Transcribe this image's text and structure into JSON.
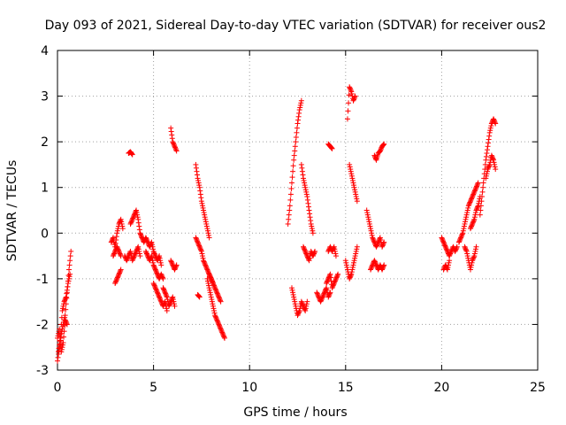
{
  "chart_data": {
    "type": "scatter",
    "title": "Day 093 of 2021, Sidereal Day-to-day VTEC variation (SDTVAR) for receiver ous2",
    "xlabel": "GPS time / hours",
    "ylabel": "SDTVAR / TECUs",
    "xlim": [
      0,
      25
    ],
    "ylim": [
      -3,
      4
    ],
    "xticks": [
      0,
      5,
      10,
      15,
      20,
      25
    ],
    "yticks": [
      -3,
      -2,
      -1,
      0,
      1,
      2,
      3,
      4
    ],
    "xtick_labels": [
      "0",
      "5",
      "10",
      "15",
      "20",
      "25"
    ],
    "ytick_labels": [
      "-3",
      "-2",
      "-1",
      "0",
      "1",
      "2",
      "3",
      "4"
    ],
    "grid": true,
    "marker": "+",
    "series": [
      {
        "name": "SDTVAR",
        "color": "#ff0000",
        "segments": [
          {
            "x": [
              0.0,
              0.1,
              0.2,
              0.3,
              0.4,
              0.5,
              0.6,
              0.7
            ],
            "y": [
              -2.8,
              -2.5,
              -2.2,
              -2.0,
              -1.8,
              -1.3,
              -0.8,
              -0.4
            ]
          },
          {
            "x": [
              0.0,
              0.1,
              0.2,
              0.3,
              0.4,
              0.5
            ],
            "y": [
              -2.3,
              -2.1,
              -2.6,
              -2.4,
              -1.9,
              -2.0
            ]
          },
          {
            "x": [
              0.05,
              0.15,
              0.25,
              0.35,
              0.45,
              0.55,
              0.65
            ],
            "y": [
              -2.6,
              -2.3,
              -1.7,
              -1.5,
              -1.4,
              -1.1,
              -0.9
            ]
          },
          {
            "x": [
              2.8,
              2.9,
              3.0,
              3.1,
              3.2,
              3.3,
              3.4
            ],
            "y": [
              -0.2,
              -0.1,
              -0.3,
              0.0,
              0.2,
              0.3,
              0.1
            ]
          },
          {
            "x": [
              2.9,
              3.0,
              3.1,
              3.2,
              3.3
            ],
            "y": [
              -0.5,
              -0.4,
              -0.3,
              -0.4,
              -0.5
            ]
          },
          {
            "x": [
              3.0,
              3.1,
              3.2,
              3.3
            ],
            "y": [
              -1.1,
              -1.0,
              -0.9,
              -0.8
            ]
          },
          {
            "x": [
              3.5,
              3.6,
              3.7,
              3.8,
              3.9,
              4.0,
              4.1,
              4.2,
              4.3
            ],
            "y": [
              -0.5,
              -0.6,
              -0.5,
              -0.4,
              -0.6,
              -0.5,
              -0.4,
              -0.3,
              -0.5
            ]
          },
          {
            "x": [
              3.7,
              3.8,
              3.9
            ],
            "y": [
              1.75,
              1.78,
              1.72
            ]
          },
          {
            "x": [
              3.8,
              3.9,
              4.0,
              4.1,
              4.2,
              4.3,
              4.4
            ],
            "y": [
              0.2,
              0.3,
              0.4,
              0.5,
              0.3,
              0.0,
              -0.1
            ]
          },
          {
            "x": [
              4.4,
              4.5,
              4.6,
              4.7,
              4.8,
              4.9,
              5.0,
              5.1,
              5.2,
              5.3,
              5.4
            ],
            "y": [
              -0.1,
              -0.2,
              -0.1,
              -0.2,
              -0.3,
              -0.2,
              -0.4,
              -0.5,
              -0.6,
              -0.5,
              -0.7
            ]
          },
          {
            "x": [
              4.6,
              4.7,
              4.8,
              4.9,
              5.0,
              5.1,
              5.2,
              5.3,
              5.4,
              5.5
            ],
            "y": [
              -0.4,
              -0.5,
              -0.6,
              -0.5,
              -0.7,
              -0.8,
              -0.9,
              -1.0,
              -0.9,
              -1.0
            ]
          },
          {
            "x": [
              5.0,
              5.1,
              5.2,
              5.3,
              5.4,
              5.5,
              5.6,
              5.7
            ],
            "y": [
              -1.1,
              -1.2,
              -1.3,
              -1.4,
              -1.5,
              -1.6,
              -1.5,
              -1.7
            ]
          },
          {
            "x": [
              5.5,
              5.6,
              5.7,
              5.8,
              5.9,
              6.0,
              6.1
            ],
            "y": [
              -1.2,
              -1.3,
              -1.4,
              -1.6,
              -1.5,
              -1.4,
              -1.6
            ]
          },
          {
            "x": [
              5.9,
              6.0,
              6.1,
              6.2
            ],
            "y": [
              -0.6,
              -0.7,
              -0.8,
              -0.7
            ]
          },
          {
            "x": [
              5.9,
              6.0,
              6.1,
              6.2
            ],
            "y": [
              2.3,
              2.0,
              1.9,
              1.8
            ]
          },
          {
            "x": [
              7.2,
              7.3,
              7.4,
              7.5,
              7.6,
              7.7,
              7.8,
              7.9
            ],
            "y": [
              1.5,
              1.2,
              1.0,
              0.7,
              0.5,
              0.3,
              0.1,
              -0.1
            ]
          },
          {
            "x": [
              7.2,
              7.3,
              7.4,
              7.5,
              7.6,
              7.7,
              7.8,
              7.9,
              8.0,
              8.1
            ],
            "y": [
              -0.1,
              -0.2,
              -0.3,
              -0.4,
              -0.6,
              -0.7,
              -0.8,
              -0.9,
              -1.0,
              -1.1
            ]
          },
          {
            "x": [
              7.8,
              7.9,
              8.0,
              8.1,
              8.2,
              8.3,
              8.4,
              8.5,
              8.6,
              8.7
            ],
            "y": [
              -1.0,
              -1.2,
              -1.4,
              -1.6,
              -1.8,
              -1.9,
              -2.0,
              -2.1,
              -2.2,
              -2.3
            ]
          },
          {
            "x": [
              7.9,
              8.0,
              8.1,
              8.2,
              8.3,
              8.4,
              8.5
            ],
            "y": [
              -0.9,
              -1.0,
              -1.1,
              -1.2,
              -1.3,
              -1.4,
              -1.5
            ]
          },
          {
            "x": [
              7.3,
              7.4
            ],
            "y": [
              -1.35,
              -1.4
            ]
          },
          {
            "x": [
              12.0,
              12.1,
              12.2,
              12.3,
              12.4,
              12.5,
              12.6,
              12.7
            ],
            "y": [
              0.2,
              0.6,
              1.1,
              1.6,
              2.0,
              2.4,
              2.7,
              2.9
            ]
          },
          {
            "x": [
              12.2,
              12.3,
              12.4,
              12.5,
              12.6,
              12.7,
              12.8,
              12.9,
              13.0
            ],
            "y": [
              -1.2,
              -1.4,
              -1.6,
              -1.8,
              -1.7,
              -1.5,
              -1.6,
              -1.7,
              -1.5
            ]
          },
          {
            "x": [
              12.7,
              12.8,
              12.9,
              13.0,
              13.1,
              13.2,
              13.3
            ],
            "y": [
              1.5,
              1.2,
              1.0,
              0.8,
              0.5,
              0.2,
              0.0
            ]
          },
          {
            "x": [
              12.8,
              12.9,
              13.0,
              13.1,
              13.2,
              13.3,
              13.4
            ],
            "y": [
              -0.3,
              -0.4,
              -0.5,
              -0.6,
              -0.4,
              -0.5,
              -0.4
            ]
          },
          {
            "x": [
              13.5,
              13.6,
              13.7,
              13.8,
              13.9,
              14.0,
              14.1,
              14.2
            ],
            "y": [
              -1.3,
              -1.4,
              -1.5,
              -1.4,
              -1.3,
              -1.2,
              -1.4,
              -1.3
            ]
          },
          {
            "x": [
              14.0,
              14.1,
              14.2,
              14.3,
              14.4,
              14.5,
              14.6
            ],
            "y": [
              -1.1,
              -1.0,
              -0.9,
              -1.2,
              -1.1,
              -1.0,
              -0.9
            ]
          },
          {
            "x": [
              14.1,
              14.2,
              14.3,
              14.4,
              14.5
            ],
            "y": [
              -0.4,
              -0.3,
              -0.4,
              -0.3,
              -0.5
            ]
          },
          {
            "x": [
              14.1,
              14.2,
              14.3
            ],
            "y": [
              1.95,
              1.9,
              1.85
            ]
          },
          {
            "x": [
              15.1,
              15.2,
              15.3,
              15.4,
              15.5
            ],
            "y": [
              2.5,
              3.2,
              3.1,
              2.9,
              3.0
            ]
          },
          {
            "x": [
              15.2,
              15.3,
              15.4,
              15.5,
              15.6
            ],
            "y": [
              1.5,
              1.3,
              1.1,
              0.9,
              0.7
            ]
          },
          {
            "x": [
              15.0,
              15.1,
              15.2,
              15.3,
              15.4,
              15.5,
              15.6
            ],
            "y": [
              -0.6,
              -0.8,
              -1.0,
              -0.9,
              -0.7,
              -0.5,
              -0.3
            ]
          },
          {
            "x": [
              16.1,
              16.2,
              16.3,
              16.4,
              16.5,
              16.6,
              16.7,
              16.8,
              16.9,
              17.0
            ],
            "y": [
              0.5,
              0.3,
              0.1,
              -0.1,
              -0.2,
              -0.3,
              -0.2,
              -0.1,
              -0.3,
              -0.2
            ]
          },
          {
            "x": [
              16.3,
              16.4,
              16.5,
              16.6,
              16.7,
              16.8,
              16.9,
              17.0
            ],
            "y": [
              -0.8,
              -0.7,
              -0.6,
              -0.7,
              -0.8,
              -0.7,
              -0.8,
              -0.7
            ]
          },
          {
            "x": [
              16.5,
              16.6,
              16.7,
              16.8,
              16.9,
              17.0
            ],
            "y": [
              1.7,
              1.6,
              1.75,
              1.8,
              1.9,
              1.95
            ]
          },
          {
            "x": [
              20.0,
              20.1,
              20.2,
              20.3,
              20.4,
              20.5,
              20.6,
              20.7,
              20.8
            ],
            "y": [
              -0.1,
              -0.2,
              -0.3,
              -0.4,
              -0.5,
              -0.4,
              -0.3,
              -0.4,
              -0.3
            ]
          },
          {
            "x": [
              20.1,
              20.2,
              20.3,
              20.4
            ],
            "y": [
              -0.8,
              -0.7,
              -0.8,
              -0.6
            ]
          },
          {
            "x": [
              20.9,
              21.0,
              21.1,
              21.2,
              21.3,
              21.4,
              21.5,
              21.6,
              21.7,
              21.8,
              21.9
            ],
            "y": [
              -0.2,
              -0.1,
              0.0,
              0.2,
              0.4,
              0.6,
              0.7,
              0.8,
              0.9,
              1.0,
              1.1
            ]
          },
          {
            "x": [
              21.2,
              21.3,
              21.4,
              21.5,
              21.6,
              21.7,
              21.8
            ],
            "y": [
              -0.3,
              -0.4,
              -0.6,
              -0.8,
              -0.6,
              -0.5,
              -0.3
            ]
          },
          {
            "x": [
              21.5,
              21.6,
              21.7,
              21.8,
              21.9,
              22.0
            ],
            "y": [
              0.1,
              0.2,
              0.3,
              0.5,
              0.6,
              0.8
            ]
          },
          {
            "x": [
              22.0,
              22.1,
              22.2,
              22.3,
              22.4,
              22.5,
              22.6,
              22.7,
              22.8
            ],
            "y": [
              0.4,
              0.8,
              1.2,
              1.6,
              1.9,
              2.2,
              2.4,
              2.5,
              2.4
            ]
          },
          {
            "x": [
              22.3,
              22.4,
              22.5,
              22.6,
              22.7,
              22.8
            ],
            "y": [
              1.2,
              1.4,
              1.5,
              1.7,
              1.6,
              1.4
            ]
          }
        ]
      }
    ]
  }
}
